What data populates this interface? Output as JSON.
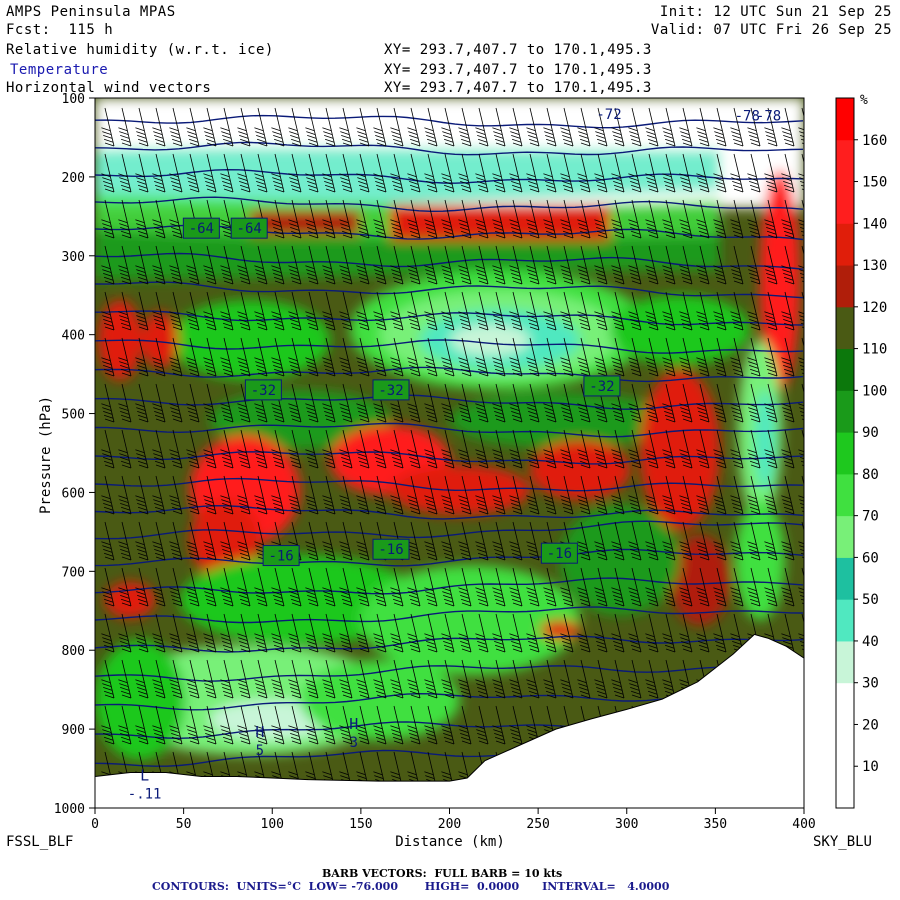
{
  "header": {
    "model": "AMPS Peninsula MPAS",
    "forecast": "Fcst:  115 h",
    "init": "Init: 12 UTC Sun 21 Sep 25",
    "valid": "Valid: 07 UTC Fri 26 Sep 25",
    "fields": [
      {
        "name": "Relative humidity (w.r.t. ice)",
        "xy": "XY= 293.7,407.7 to 170.1,495.3"
      },
      {
        "name": "Temperature",
        "xy": "XY= 293.7,407.7 to 170.1,495.3"
      },
      {
        "name": "Horizontal wind vectors",
        "xy": "XY= 293.7,407.7 to 170.1,495.3"
      }
    ]
  },
  "footer": {
    "left_label": "FSSL_BLF",
    "right_label": "SKY_BLU",
    "barb_note": "BARB VECTORS:  FULL BARB = 10 kts",
    "contour_note": "CONTOURS:  UNITS=°C  LOW= -76.000       HIGH=  0.0000      INTERVAL=   4.0000"
  },
  "colors": {
    "temperature_contour": "#0a1a78",
    "terrain": "#ffffff",
    "barb": "#000000"
  },
  "chart_data": {
    "type": "heatmap",
    "xlabel": "Distance (km)",
    "ylabel": "Pressure (hPa)",
    "xlim": [
      0,
      400
    ],
    "ylim": [
      1000,
      100
    ],
    "x_ticks": [
      0,
      50,
      100,
      150,
      200,
      250,
      300,
      350,
      400
    ],
    "y_ticks": [
      100,
      200,
      300,
      400,
      500,
      600,
      700,
      800,
      900,
      1000
    ],
    "colorbar": {
      "unit": "%",
      "labels": [
        10,
        20,
        30,
        40,
        50,
        60,
        70,
        80,
        90,
        100,
        110,
        120,
        130,
        140,
        150,
        160
      ],
      "colors": [
        "#ffffff",
        "#ffffff",
        "#ffffff",
        "#c8f5d8",
        "#50e8c0",
        "#1ec0a0",
        "#78f078",
        "#40e040",
        "#1ec81e",
        "#1a9a1a",
        "#0c780c",
        "#4a5a14",
        "#b01e0a",
        "#e01e0a",
        "#ff1e1e",
        "#ff1e1e",
        "#ff0000"
      ]
    },
    "temperature_labels": [
      {
        "text": "-64",
        "x": 60,
        "p": 265
      },
      {
        "text": "-64",
        "x": 87,
        "p": 265
      },
      {
        "text": "-32",
        "x": 95,
        "p": 470
      },
      {
        "text": "-32",
        "x": 167,
        "p": 470
      },
      {
        "text": "-32",
        "x": 286,
        "p": 465
      },
      {
        "text": "-16",
        "x": 105,
        "p": 680
      },
      {
        "text": "-16",
        "x": 167,
        "p": 672
      },
      {
        "text": "-16",
        "x": 262,
        "p": 677
      }
    ],
    "extrema_labels": [
      {
        "marker": "H",
        "value": "5",
        "x": 93,
        "p": 910
      },
      {
        "marker": "H",
        "value": "3",
        "x": 146,
        "p": 900
      },
      {
        "marker": "L",
        "value": "-.11",
        "x": 28,
        "p": 965
      }
    ],
    "top_labels": [
      {
        "text": "-72",
        "x": 290,
        "p": 120
      },
      {
        "text": "-78",
        "x": 368,
        "p": 122
      },
      {
        "text": "-78",
        "x": 380,
        "p": 122
      }
    ],
    "terrain_surface_hPa": [
      [
        0,
        960
      ],
      [
        20,
        955
      ],
      [
        40,
        955
      ],
      [
        60,
        960
      ],
      [
        80,
        960
      ],
      [
        100,
        962
      ],
      [
        120,
        964
      ],
      [
        140,
        965
      ],
      [
        160,
        966
      ],
      [
        180,
        966
      ],
      [
        200,
        966
      ],
      [
        210,
        962
      ],
      [
        220,
        940
      ],
      [
        240,
        920
      ],
      [
        260,
        900
      ],
      [
        280,
        887
      ],
      [
        300,
        875
      ],
      [
        320,
        862
      ],
      [
        340,
        840
      ],
      [
        360,
        805
      ],
      [
        372,
        780
      ],
      [
        380,
        785
      ],
      [
        390,
        795
      ],
      [
        400,
        810
      ]
    ]
  }
}
